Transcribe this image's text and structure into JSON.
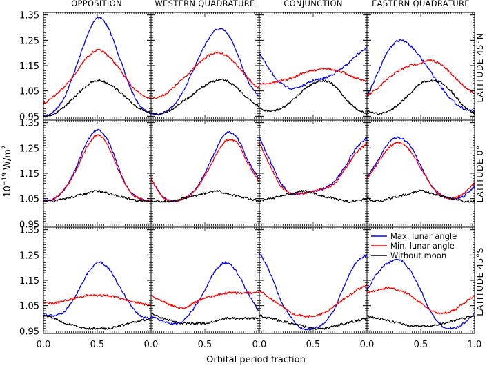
{
  "chart_data": {
    "type": "line",
    "layout": "3x4 panel grid",
    "column_titles": [
      "OPPOSITION",
      "WESTERN QUADRATURE",
      "CONJUNCTION",
      "EASTERN QUADRATURE"
    ],
    "row_titles": [
      "LATITUDE 45°N",
      "LATITUDE 0°",
      "LATITUDE 45°S"
    ],
    "xlabel": "Orbital period fraction",
    "ylabel_main": "10",
    "ylabel_exp": "−19",
    "ylabel_unit": " W/m",
    "ylabel_sup": "2",
    "xlim": [
      0.0,
      1.0
    ],
    "ylim": [
      0.94,
      1.36
    ],
    "xticks": [
      "0.0",
      "0.5",
      "0.0",
      "0.5",
      "0.0",
      "0.5",
      "0.0",
      "0.5",
      "1.0"
    ],
    "yticks": [
      "1.35",
      "1.25",
      "1.15",
      "1.05",
      "0.95"
    ],
    "legend": {
      "placement": "inside bottom-right panel column, upper right",
      "entries": [
        "Max. lunar angle",
        "Min. lunar angle",
        "Without moon"
      ]
    },
    "colors": {
      "max": "#0000ff",
      "min": "#ff0000",
      "none": "#000000"
    },
    "x": [
      0.0,
      0.1,
      0.2,
      0.3,
      0.4,
      0.5,
      0.6,
      0.7,
      0.8,
      0.9,
      1.0
    ],
    "series": [
      {
        "row": 0,
        "col": 0,
        "name": "Max. lunar angle",
        "values": [
          0.95,
          0.97,
          1.03,
          1.14,
          1.26,
          1.34,
          1.3,
          1.19,
          1.07,
          0.99,
          0.96
        ]
      },
      {
        "row": 0,
        "col": 0,
        "name": "Min. lunar angle",
        "values": [
          1.0,
          1.03,
          1.07,
          1.12,
          1.18,
          1.21,
          1.19,
          1.14,
          1.08,
          1.04,
          1.02
        ]
      },
      {
        "row": 0,
        "col": 0,
        "name": "Without moon",
        "values": [
          0.95,
          0.96,
          0.99,
          1.03,
          1.07,
          1.09,
          1.08,
          1.05,
          1.01,
          0.98,
          0.96
        ]
      },
      {
        "row": 0,
        "col": 1,
        "name": "Max. lunar angle",
        "values": [
          0.96,
          0.96,
          0.99,
          1.05,
          1.14,
          1.23,
          1.29,
          1.28,
          1.2,
          1.09,
          1.03
        ]
      },
      {
        "row": 0,
        "col": 1,
        "name": "Min. lunar angle",
        "values": [
          1.02,
          1.03,
          1.06,
          1.1,
          1.14,
          1.18,
          1.2,
          1.19,
          1.15,
          1.1,
          1.06
        ]
      },
      {
        "row": 0,
        "col": 1,
        "name": "Without moon",
        "values": [
          0.96,
          0.96,
          0.98,
          1.01,
          1.04,
          1.07,
          1.09,
          1.09,
          1.06,
          1.02,
          0.99
        ]
      },
      {
        "row": 0,
        "col": 2,
        "name": "Max. lunar angle",
        "values": [
          1.2,
          1.13,
          1.08,
          1.06,
          1.07,
          1.09,
          1.1,
          1.12,
          1.15,
          1.19,
          1.22
        ]
      },
      {
        "row": 0,
        "col": 2,
        "name": "Min. lunar angle",
        "values": [
          1.08,
          1.08,
          1.09,
          1.1,
          1.12,
          1.13,
          1.14,
          1.13,
          1.12,
          1.1,
          1.09
        ]
      },
      {
        "row": 0,
        "col": 2,
        "name": "Without moon",
        "values": [
          0.98,
          0.97,
          0.98,
          1.01,
          1.05,
          1.08,
          1.09,
          1.07,
          1.02,
          0.98,
          0.96
        ]
      },
      {
        "row": 0,
        "col": 3,
        "name": "Max. lunar angle",
        "values": [
          1.03,
          1.12,
          1.21,
          1.25,
          1.23,
          1.18,
          1.12,
          1.06,
          1.01,
          0.98,
          0.97
        ]
      },
      {
        "row": 0,
        "col": 3,
        "name": "Min. lunar angle",
        "values": [
          1.03,
          1.06,
          1.1,
          1.13,
          1.15,
          1.16,
          1.17,
          1.15,
          1.11,
          1.07,
          1.04
        ]
      },
      {
        "row": 0,
        "col": 3,
        "name": "Without moon",
        "values": [
          0.97,
          0.96,
          0.97,
          1.0,
          1.04,
          1.08,
          1.09,
          1.08,
          1.04,
          0.99,
          0.96
        ]
      },
      {
        "row": 1,
        "col": 0,
        "name": "Max. lunar angle",
        "values": [
          1.04,
          1.05,
          1.09,
          1.17,
          1.27,
          1.32,
          1.28,
          1.17,
          1.08,
          1.05,
          1.04
        ]
      },
      {
        "row": 1,
        "col": 0,
        "name": "Min. lunar angle",
        "values": [
          1.04,
          1.05,
          1.09,
          1.16,
          1.25,
          1.3,
          1.26,
          1.16,
          1.08,
          1.05,
          1.04
        ]
      },
      {
        "row": 1,
        "col": 0,
        "name": "Without moon",
        "values": [
          1.04,
          1.04,
          1.05,
          1.06,
          1.07,
          1.08,
          1.07,
          1.06,
          1.05,
          1.04,
          1.04
        ]
      },
      {
        "row": 1,
        "col": 1,
        "name": "Max. lunar angle",
        "values": [
          1.13,
          1.06,
          1.04,
          1.05,
          1.08,
          1.15,
          1.24,
          1.31,
          1.29,
          1.2,
          1.13
        ]
      },
      {
        "row": 1,
        "col": 1,
        "name": "Min. lunar angle",
        "values": [
          1.13,
          1.06,
          1.04,
          1.05,
          1.08,
          1.14,
          1.22,
          1.28,
          1.27,
          1.19,
          1.12
        ]
      },
      {
        "row": 1,
        "col": 1,
        "name": "Without moon",
        "values": [
          1.04,
          1.04,
          1.04,
          1.05,
          1.06,
          1.07,
          1.08,
          1.07,
          1.06,
          1.05,
          1.04
        ]
      },
      {
        "row": 1,
        "col": 2,
        "name": "Max. lunar angle",
        "values": [
          1.29,
          1.2,
          1.11,
          1.07,
          1.07,
          1.08,
          1.09,
          1.12,
          1.18,
          1.25,
          1.29
        ]
      },
      {
        "row": 1,
        "col": 2,
        "name": "Min. lunar angle",
        "values": [
          1.27,
          1.18,
          1.1,
          1.07,
          1.07,
          1.08,
          1.09,
          1.11,
          1.17,
          1.23,
          1.27
        ]
      },
      {
        "row": 1,
        "col": 2,
        "name": "Without moon",
        "values": [
          1.04,
          1.05,
          1.06,
          1.07,
          1.08,
          1.07,
          1.06,
          1.05,
          1.04,
          1.04,
          1.05
        ]
      },
      {
        "row": 1,
        "col": 3,
        "name": "Max. lunar angle",
        "values": [
          1.13,
          1.2,
          1.27,
          1.29,
          1.26,
          1.18,
          1.1,
          1.06,
          1.05,
          1.06,
          1.1
        ]
      },
      {
        "row": 1,
        "col": 3,
        "name": "Min. lunar angle",
        "values": [
          1.13,
          1.19,
          1.25,
          1.27,
          1.24,
          1.17,
          1.1,
          1.06,
          1.05,
          1.07,
          1.11
        ]
      },
      {
        "row": 1,
        "col": 3,
        "name": "Without moon",
        "values": [
          1.05,
          1.04,
          1.05,
          1.06,
          1.07,
          1.08,
          1.07,
          1.06,
          1.05,
          1.04,
          1.04
        ]
      },
      {
        "row": 2,
        "col": 0,
        "name": "Max. lunar angle",
        "values": [
          1.02,
          1.01,
          1.03,
          1.09,
          1.17,
          1.22,
          1.2,
          1.13,
          1.06,
          1.01,
          1.0
        ]
      },
      {
        "row": 2,
        "col": 0,
        "name": "Min. lunar angle",
        "values": [
          1.06,
          1.06,
          1.07,
          1.08,
          1.09,
          1.09,
          1.09,
          1.08,
          1.07,
          1.06,
          1.05
        ]
      },
      {
        "row": 2,
        "col": 0,
        "name": "Without moon",
        "values": [
          1.01,
          1.0,
          0.98,
          0.97,
          0.96,
          0.96,
          0.96,
          0.97,
          0.98,
          0.99,
          1.0
        ]
      },
      {
        "row": 2,
        "col": 1,
        "name": "Max. lunar angle",
        "values": [
          1.01,
          0.99,
          0.98,
          0.99,
          1.04,
          1.11,
          1.19,
          1.22,
          1.18,
          1.1,
          1.03
        ]
      },
      {
        "row": 2,
        "col": 1,
        "name": "Min. lunar angle",
        "values": [
          1.09,
          1.07,
          1.05,
          1.04,
          1.06,
          1.08,
          1.09,
          1.1,
          1.1,
          1.1,
          1.1
        ]
      },
      {
        "row": 2,
        "col": 1,
        "name": "Without moon",
        "values": [
          1.02,
          1.0,
          0.99,
          0.98,
          0.98,
          0.98,
          0.99,
          1.0,
          1.0,
          1.0,
          1.0
        ]
      },
      {
        "row": 2,
        "col": 2,
        "name": "Max. lunar angle",
        "values": [
          1.26,
          1.18,
          1.07,
          1.0,
          0.96,
          0.96,
          0.98,
          1.04,
          1.14,
          1.22,
          1.25
        ]
      },
      {
        "row": 2,
        "col": 2,
        "name": "Min. lunar angle",
        "values": [
          1.11,
          1.08,
          1.05,
          1.02,
          1.01,
          1.01,
          1.02,
          1.05,
          1.08,
          1.11,
          1.13
        ]
      },
      {
        "row": 2,
        "col": 2,
        "name": "Without moon",
        "values": [
          1.01,
          1.0,
          0.99,
          0.98,
          0.97,
          0.96,
          0.96,
          0.97,
          0.98,
          0.99,
          1.0
        ]
      },
      {
        "row": 2,
        "col": 3,
        "name": "Max. lunar angle",
        "values": [
          1.11,
          1.18,
          1.22,
          1.23,
          1.19,
          1.11,
          1.02,
          0.97,
          0.96,
          0.98,
          1.02
        ]
      },
      {
        "row": 2,
        "col": 3,
        "name": "Min. lunar angle",
        "values": [
          1.1,
          1.11,
          1.12,
          1.11,
          1.09,
          1.06,
          1.03,
          1.02,
          1.03,
          1.06,
          1.09
        ]
      },
      {
        "row": 2,
        "col": 3,
        "name": "Without moon",
        "values": [
          1.01,
          1.0,
          0.99,
          0.98,
          0.97,
          0.97,
          0.97,
          0.98,
          0.99,
          1.0,
          1.01
        ]
      }
    ]
  }
}
